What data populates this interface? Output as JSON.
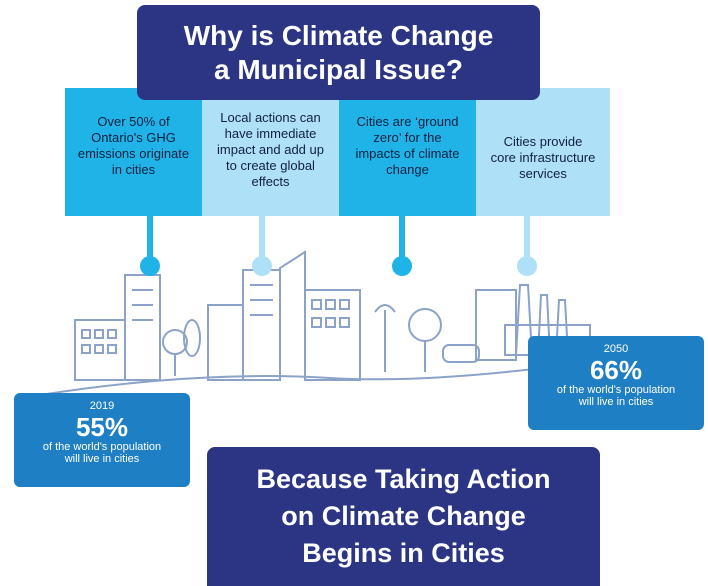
{
  "title": {
    "lines": [
      "Why is Climate Change",
      "a Municipal Issue?"
    ]
  },
  "panels": [
    {
      "lines": [
        "Over 50% of",
        "Ontario's GHG",
        "emissions originate",
        "in cities"
      ]
    },
    {
      "lines": [
        "Local actions can",
        "have immediate",
        "impact and add up",
        "to create global",
        "effects"
      ]
    },
    {
      "lines": [
        "Cities are ‘ground",
        "zero’ for the",
        "impacts of climate",
        "change"
      ]
    },
    {
      "lines": [
        "Cities provide",
        "core infrastructure",
        "services"
      ]
    }
  ],
  "stats": [
    {
      "year": "2019",
      "percent": "55%",
      "lines": [
        "of the world's population",
        "will live in cities"
      ]
    },
    {
      "year": "2050",
      "percent": "66%",
      "lines": [
        "of the world's population",
        "will live in cities"
      ]
    }
  ],
  "footer": {
    "lines": [
      "Because Taking Action",
      "on Climate Change",
      "Begins in Cities"
    ]
  }
}
